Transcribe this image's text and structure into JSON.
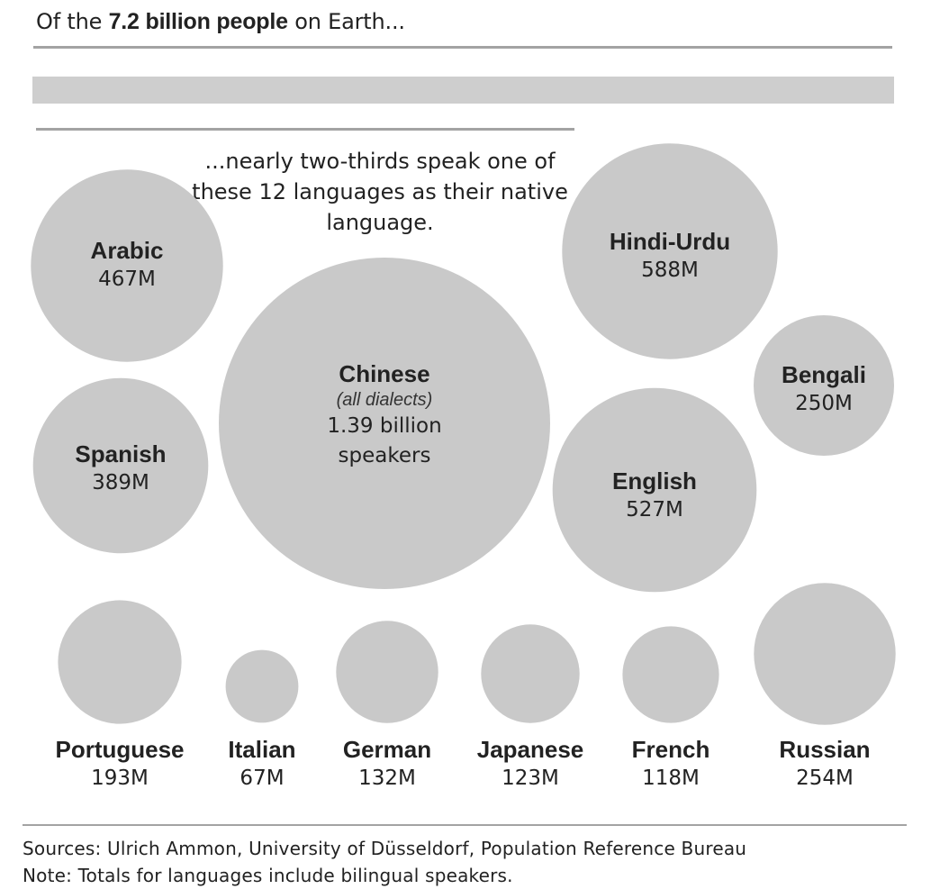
{
  "header": {
    "prefix": "Of the",
    "highlight": "7.2 billion people",
    "suffix": "on Earth..."
  },
  "subheadline": "...nearly two-thirds speak one of these 12 languages as their native language.",
  "colors": {
    "bubble": "#c9c9c9",
    "bar": "#cecece",
    "rule": "#a3a3a3",
    "text": "#222222"
  },
  "chart_data": {
    "type": "bubble",
    "unit": "million native speakers",
    "series": [
      {
        "name": "Chinese",
        "qualifier": "(all dialects)",
        "value": 1390,
        "label": "1.39 billion speakers"
      },
      {
        "name": "Hindi-Urdu",
        "value": 588,
        "label": "588M"
      },
      {
        "name": "English",
        "value": 527,
        "label": "527M"
      },
      {
        "name": "Arabic",
        "value": 467,
        "label": "467M"
      },
      {
        "name": "Spanish",
        "value": 389,
        "label": "389M"
      },
      {
        "name": "Russian",
        "value": 254,
        "label": "254M"
      },
      {
        "name": "Bengali",
        "value": 250,
        "label": "250M"
      },
      {
        "name": "Portuguese",
        "value": 193,
        "label": "193M"
      },
      {
        "name": "German",
        "value": 132,
        "label": "132M"
      },
      {
        "name": "Japanese",
        "value": 123,
        "label": "123M"
      },
      {
        "name": "French",
        "value": 118,
        "label": "118M"
      },
      {
        "name": "Italian",
        "value": 67,
        "label": "67M"
      }
    ]
  },
  "footer": {
    "sources": "Sources: Ulrich Ammon, University of Düsseldorf, Population Reference Bureau",
    "note": "Note: Totals for languages include bilingual speakers."
  }
}
